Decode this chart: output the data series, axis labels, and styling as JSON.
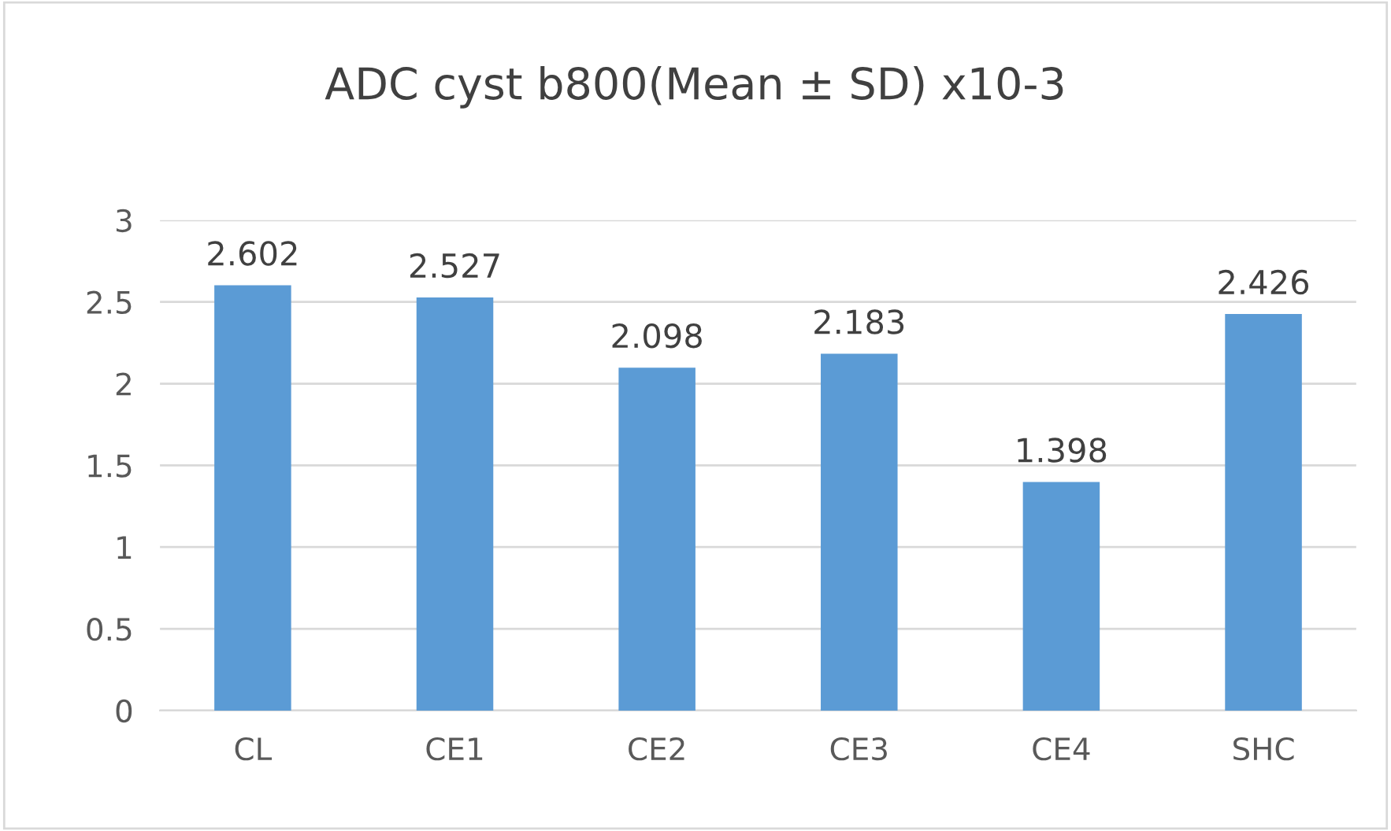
{
  "chart_data": {
    "type": "bar",
    "title": "ADC cyst b800(Mean ± SD) x10-3",
    "categories": [
      "CL",
      "CE1",
      "CE2",
      "CE3",
      "CE4",
      "SHC"
    ],
    "values": [
      2.602,
      2.527,
      2.098,
      2.183,
      1.398,
      2.426
    ],
    "color": "#5b9bd5",
    "ylim": [
      0,
      3
    ],
    "yticks": [
      0,
      0.5,
      1,
      1.5,
      2,
      2.5,
      3
    ],
    "grid": "y",
    "data_labels": true
  }
}
